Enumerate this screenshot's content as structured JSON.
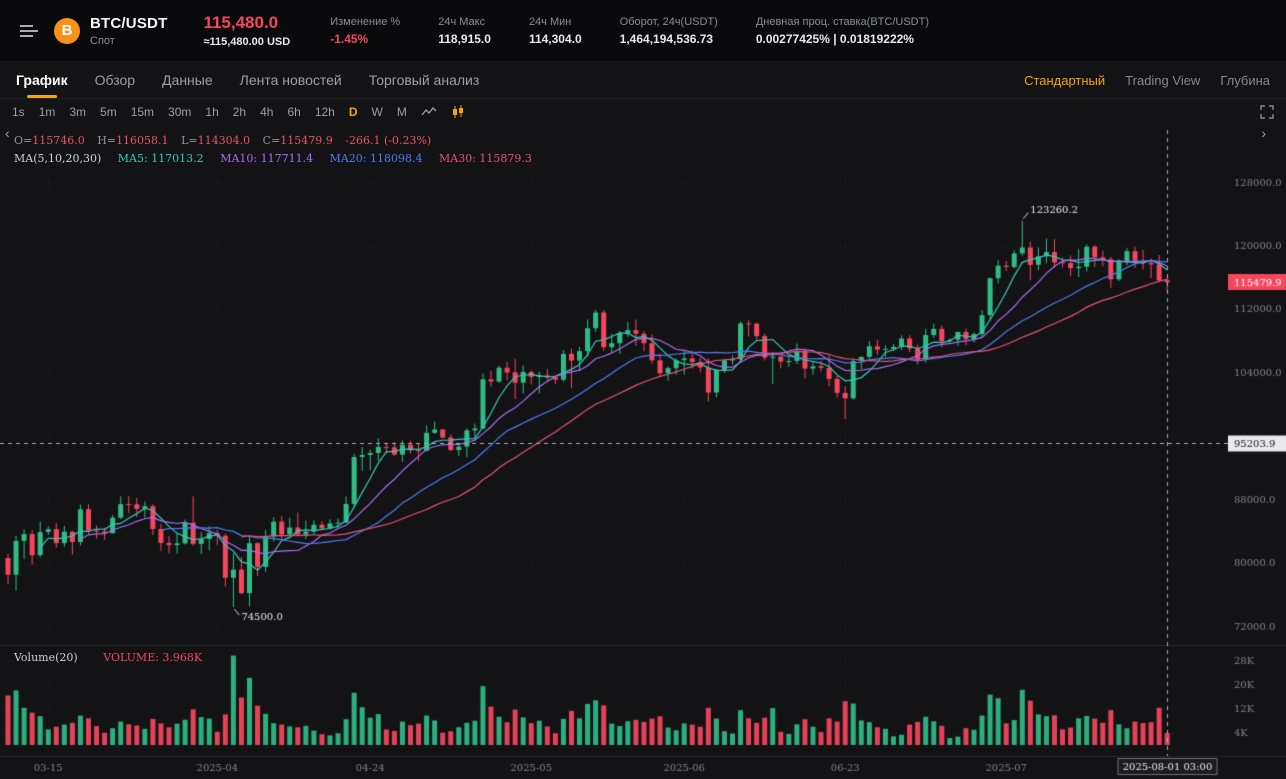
{
  "header": {
    "pair": "BTC/USDT",
    "market_type": "Спот",
    "last_price": "115,480.0",
    "fiat_equiv": "≈115,480.00 USD",
    "stats": [
      {
        "label": "Изменение %",
        "value": "-1.45%"
      },
      {
        "label": "24ч Макс",
        "value": "118,915.0"
      },
      {
        "label": "24ч Мин",
        "value": "114,304.0"
      },
      {
        "label": "Оборот, 24ч(USDT)",
        "value": "1,464,194,536.73"
      },
      {
        "label": "Дневная проц. ставка(BTC/USDT)",
        "value": "0.00277425% | 0.01819222%"
      }
    ]
  },
  "tabs": {
    "items": [
      "График",
      "Обзор",
      "Данные",
      "Лента новостей",
      "Торговый анализ"
    ],
    "active": "График",
    "right": [
      "Стандартный",
      "Trading View",
      "Глубина"
    ],
    "right_active": "Стандартный"
  },
  "toolbar": {
    "intervals": [
      "1s",
      "1m",
      "3m",
      "5m",
      "15m",
      "30m",
      "1h",
      "2h",
      "4h",
      "6h",
      "12h",
      "D",
      "W",
      "M"
    ],
    "active_interval": "D"
  },
  "chart_data": {
    "type": "candlestick",
    "interval": "D",
    "price_axis_visible_range": [
      69800,
      135500
    ],
    "ohlc_legend": {
      "items": [
        {
          "label": "O=",
          "value": "115746.0"
        },
        {
          "label": "H=",
          "value": "116058.1"
        },
        {
          "label": "L=",
          "value": "114304.0"
        },
        {
          "label": "C=",
          "value": "115479.9"
        },
        {
          "label": "",
          "value": "-266.1 (-0.23%)"
        }
      ]
    },
    "indicators": {
      "label": "MA(5,10,20,30)",
      "items": [
        {
          "text": "MA5: 117013.2",
          "period": 5,
          "color": "#35c9b6"
        },
        {
          "text": "MA10: 117711.4",
          "period": 10,
          "color": "#a86ef2"
        },
        {
          "text": "MA20: 118098.4",
          "period": 20,
          "color": "#4a7df5"
        },
        {
          "text": "MA30: 115879.3",
          "period": 30,
          "color": "#e8507b"
        }
      ]
    },
    "volume_legend": {
      "name": "Volume(20)",
      "value": "VOLUME: 3.968K"
    },
    "price_gridlines": [
      {
        "value": 128000,
        "label": "128000.0"
      },
      {
        "value": 120000,
        "label": "120000.0"
      },
      {
        "value": 112000,
        "label": "112000.0"
      },
      {
        "value": 104000,
        "label": "104000.0"
      },
      {
        "value": 96000,
        "label": ""
      },
      {
        "value": 88000,
        "label": "88000.0"
      },
      {
        "value": 80000,
        "label": "80000.0"
      },
      {
        "value": 72000,
        "label": "72000.0"
      }
    ],
    "volume_gridlines": [
      {
        "value": 28000,
        "label": "28K"
      },
      {
        "value": 20000,
        "label": "20K"
      },
      {
        "value": 12000,
        "label": "12K"
      },
      {
        "value": 4000,
        "label": "4K"
      }
    ],
    "x_ticks": [
      {
        "i": 5,
        "label": "03-15"
      },
      {
        "i": 26,
        "label": "2025-04"
      },
      {
        "i": 45,
        "label": "04-24"
      },
      {
        "i": 65,
        "label": "2025-05"
      },
      {
        "i": 84,
        "label": "2025-06"
      },
      {
        "i": 104,
        "label": "06-23"
      },
      {
        "i": 124,
        "label": "2025-07"
      }
    ],
    "annotations": [
      {
        "index": 126,
        "price": 123260.2,
        "label": "123260.2",
        "position": "above"
      },
      {
        "index": 28,
        "price": 74500.0,
        "label": "74500.0",
        "position": "below"
      }
    ],
    "crosshair": {
      "index": 144,
      "price": 95203.9,
      "price_label": "95203.9",
      "time_label": "2025-08-01 03:00"
    },
    "last_price_label": "115479.9",
    "colors": {
      "up": "#2ebd85",
      "down": "#f6465d",
      "bg": "#131316",
      "grid": "#23242b",
      "divider": "#26272e",
      "axis_text": "#7f848d",
      "crosshair": "#aab0ba",
      "accent": "#f7a600"
    },
    "candles": [
      [
        80700,
        81200,
        77400,
        78600,
        16500
      ],
      [
        78600,
        83500,
        76600,
        82860,
        18200
      ],
      [
        82860,
        84300,
        80600,
        83720,
        12400
      ],
      [
        83720,
        84200,
        79900,
        81070,
        10800
      ],
      [
        81070,
        85300,
        80800,
        83980,
        9600
      ],
      [
        83980,
        84700,
        83600,
        84340,
        5200
      ],
      [
        84340,
        85100,
        82000,
        82580,
        6100
      ],
      [
        82580,
        84750,
        82100,
        84020,
        6800
      ],
      [
        84020,
        84100,
        81150,
        82720,
        7400
      ],
      [
        82720,
        87450,
        82300,
        86850,
        9800
      ],
      [
        86850,
        87470,
        83650,
        84170,
        8900
      ],
      [
        84170,
        84800,
        83120,
        84040,
        6300
      ],
      [
        84040,
        84500,
        83000,
        83830,
        4100
      ],
      [
        83830,
        86100,
        83790,
        85790,
        5600
      ],
      [
        85790,
        88500,
        85600,
        87500,
        7800
      ],
      [
        87500,
        88540,
        86330,
        87470,
        6900
      ],
      [
        87470,
        88290,
        85860,
        86900,
        6500
      ],
      [
        86900,
        87790,
        85800,
        87230,
        5400
      ],
      [
        87230,
        87490,
        83580,
        84360,
        8700
      ],
      [
        84360,
        84970,
        81640,
        82600,
        7200
      ],
      [
        82600,
        83510,
        81290,
        82330,
        5900
      ],
      [
        82330,
        83910,
        81270,
        82550,
        7100
      ],
      [
        82550,
        85550,
        82420,
        85170,
        8400
      ],
      [
        85170,
        88500,
        82280,
        82490,
        11900
      ],
      [
        82490,
        83970,
        81180,
        83100,
        9300
      ],
      [
        83100,
        84720,
        81660,
        83840,
        8800
      ],
      [
        83840,
        84250,
        82350,
        83500,
        4400
      ],
      [
        83500,
        83770,
        77100,
        78210,
        10200
      ],
      [
        78210,
        81240,
        74500,
        79240,
        29800
      ],
      [
        79240,
        80820,
        76150,
        76270,
        15800
      ],
      [
        76270,
        83550,
        74600,
        82570,
        22400
      ],
      [
        82570,
        82700,
        78450,
        79590,
        13100
      ],
      [
        79590,
        84250,
        78940,
        83400,
        10400
      ],
      [
        83400,
        85860,
        82780,
        85290,
        7300
      ],
      [
        85290,
        86010,
        83030,
        83680,
        6800
      ],
      [
        83680,
        85780,
        83600,
        84540,
        6200
      ],
      [
        84540,
        86450,
        83430,
        83670,
        5900
      ],
      [
        83670,
        85430,
        83100,
        84030,
        6400
      ],
      [
        84030,
        85450,
        83750,
        84900,
        4800
      ],
      [
        84900,
        85320,
        84290,
        84450,
        3600
      ],
      [
        84450,
        85600,
        84300,
        85060,
        3200
      ],
      [
        85060,
        85690,
        84470,
        85170,
        3900
      ],
      [
        85170,
        88470,
        85140,
        87520,
        8600
      ],
      [
        87520,
        93830,
        87060,
        93440,
        17400
      ],
      [
        93440,
        94700,
        91690,
        93700,
        12600
      ],
      [
        93700,
        94350,
        91770,
        93940,
        9100
      ],
      [
        93940,
        95770,
        92950,
        94720,
        10300
      ],
      [
        94720,
        95250,
        93930,
        94650,
        5200
      ],
      [
        94650,
        95300,
        93580,
        93750,
        4700
      ],
      [
        93750,
        95530,
        92840,
        94980,
        7800
      ],
      [
        94980,
        95490,
        93890,
        94280,
        6600
      ],
      [
        94280,
        95200,
        92910,
        94210,
        7100
      ],
      [
        94210,
        97440,
        94150,
        96490,
        9800
      ],
      [
        96490,
        97910,
        96370,
        96910,
        8200
      ],
      [
        96910,
        96940,
        95780,
        95890,
        4100
      ],
      [
        95890,
        96330,
        94180,
        94320,
        4600
      ],
      [
        94320,
        95190,
        93570,
        94750,
        5900
      ],
      [
        94750,
        97030,
        93400,
        96800,
        7400
      ],
      [
        96800,
        97660,
        95830,
        97030,
        8100
      ],
      [
        97030,
        103970,
        96950,
        103240,
        19600
      ],
      [
        103240,
        104330,
        102310,
        102970,
        12800
      ],
      [
        102970,
        104970,
        102780,
        104700,
        9400
      ],
      [
        104700,
        105460,
        103130,
        104110,
        7600
      ],
      [
        104110,
        105820,
        100750,
        102810,
        11800
      ],
      [
        102810,
        104980,
        101430,
        104170,
        9200
      ],
      [
        104170,
        104350,
        102590,
        103540,
        7300
      ],
      [
        103540,
        104190,
        101460,
        103740,
        8100
      ],
      [
        103740,
        104550,
        103140,
        103490,
        6200
      ],
      [
        103490,
        103720,
        102650,
        103190,
        3900
      ],
      [
        103190,
        106900,
        102950,
        106450,
        8700
      ],
      [
        106450,
        107110,
        102120,
        105610,
        11400
      ],
      [
        105610,
        107310,
        104250,
        106790,
        8900
      ],
      [
        106790,
        110800,
        106100,
        109680,
        13700
      ],
      [
        109680,
        111980,
        109200,
        111670,
        14900
      ],
      [
        111670,
        111920,
        106850,
        107290,
        13200
      ],
      [
        107290,
        109000,
        106650,
        107790,
        7100
      ],
      [
        107790,
        109350,
        106470,
        109040,
        6300
      ],
      [
        109040,
        110450,
        108600,
        109440,
        7900
      ],
      [
        109440,
        110780,
        107480,
        108990,
        8400
      ],
      [
        108990,
        109300,
        106790,
        107800,
        7700
      ],
      [
        107800,
        108900,
        105190,
        105640,
        8800
      ],
      [
        105640,
        106480,
        103660,
        104000,
        9600
      ],
      [
        104000,
        104850,
        103060,
        104640,
        5800
      ],
      [
        104640,
        105900,
        103790,
        105650,
        4900
      ],
      [
        105650,
        106780,
        103830,
        105880,
        7200
      ],
      [
        105880,
        106850,
        104610,
        105430,
        6800
      ],
      [
        105430,
        105970,
        104150,
        104730,
        6100
      ],
      [
        104730,
        105900,
        100430,
        101580,
        12400
      ],
      [
        101580,
        104460,
        100970,
        104410,
        8800
      ],
      [
        104410,
        105770,
        104080,
        105620,
        4600
      ],
      [
        105620,
        106240,
        105130,
        105790,
        3800
      ],
      [
        105790,
        110540,
        105390,
        110290,
        11600
      ],
      [
        110290,
        110680,
        108640,
        110260,
        8900
      ],
      [
        110260,
        110370,
        108270,
        108680,
        7400
      ],
      [
        108680,
        108980,
        105620,
        105980,
        9100
      ],
      [
        105980,
        106670,
        102660,
        106090,
        12300
      ],
      [
        106090,
        106180,
        104620,
        105470,
        4400
      ],
      [
        105470,
        106070,
        104830,
        105550,
        3700
      ],
      [
        105550,
        107780,
        105160,
        106800,
        6900
      ],
      [
        106800,
        107140,
        103370,
        104600,
        8600
      ],
      [
        104600,
        105520,
        103830,
        104880,
        6100
      ],
      [
        104880,
        105540,
        104220,
        104680,
        4300
      ],
      [
        104680,
        106460,
        102370,
        103290,
        8900
      ],
      [
        103290,
        103700,
        100930,
        101530,
        7800
      ],
      [
        101530,
        102390,
        98200,
        100850,
        14600
      ],
      [
        100850,
        105850,
        100640,
        105550,
        13800
      ],
      [
        105550,
        106100,
        104480,
        106070,
        8200
      ],
      [
        106070,
        108070,
        105750,
        107400,
        7600
      ],
      [
        107400,
        108250,
        106330,
        106980,
        5900
      ],
      [
        106980,
        107540,
        106050,
        107080,
        5400
      ],
      [
        107080,
        107680,
        106820,
        107330,
        2900
      ],
      [
        107330,
        108790,
        106920,
        108390,
        3400
      ],
      [
        108390,
        108800,
        106660,
        107140,
        6800
      ],
      [
        107140,
        107600,
        105110,
        105700,
        7700
      ],
      [
        105700,
        109620,
        105360,
        108820,
        9400
      ],
      [
        108820,
        110290,
        108470,
        109600,
        7900
      ],
      [
        109600,
        110020,
        107290,
        108040,
        6400
      ],
      [
        108040,
        108390,
        107800,
        108220,
        2300
      ],
      [
        108220,
        109210,
        107480,
        109220,
        2800
      ],
      [
        109220,
        109630,
        107560,
        108300,
        5600
      ],
      [
        108300,
        109150,
        107870,
        108950,
        5100
      ],
      [
        108950,
        111960,
        108600,
        111330,
        9800
      ],
      [
        111330,
        116040,
        110650,
        115990,
        16800
      ],
      [
        115990,
        118280,
        115340,
        117570,
        15600
      ],
      [
        117570,
        118170,
        116930,
        117420,
        7200
      ],
      [
        117420,
        119500,
        117230,
        119120,
        8300
      ],
      [
        119120,
        123260,
        118840,
        119850,
        18400
      ],
      [
        119850,
        120580,
        115740,
        117680,
        14800
      ],
      [
        117680,
        119880,
        117000,
        118750,
        10200
      ],
      [
        118750,
        120990,
        117900,
        119290,
        9600
      ],
      [
        119290,
        120920,
        117300,
        117990,
        9900
      ],
      [
        117990,
        118600,
        117350,
        117900,
        5200
      ],
      [
        117900,
        118850,
        116230,
        117260,
        5800
      ],
      [
        117260,
        119650,
        116150,
        117440,
        8900
      ],
      [
        117440,
        120250,
        116840,
        119960,
        9700
      ],
      [
        119960,
        120180,
        117400,
        118630,
        8800
      ],
      [
        118630,
        119500,
        117480,
        118370,
        7400
      ],
      [
        118370,
        118700,
        114780,
        115850,
        11600
      ],
      [
        115850,
        118360,
        115670,
        118070,
        6900
      ],
      [
        118070,
        119790,
        117600,
        119400,
        5600
      ],
      [
        119400,
        119980,
        117280,
        118210,
        7800
      ],
      [
        118210,
        119540,
        117070,
        117920,
        7300
      ],
      [
        117920,
        118460,
        116010,
        117730,
        7600
      ],
      [
        117730,
        118915,
        115510,
        115746,
        12400
      ],
      [
        115746,
        116058,
        114304,
        115480,
        3968
      ]
    ]
  }
}
